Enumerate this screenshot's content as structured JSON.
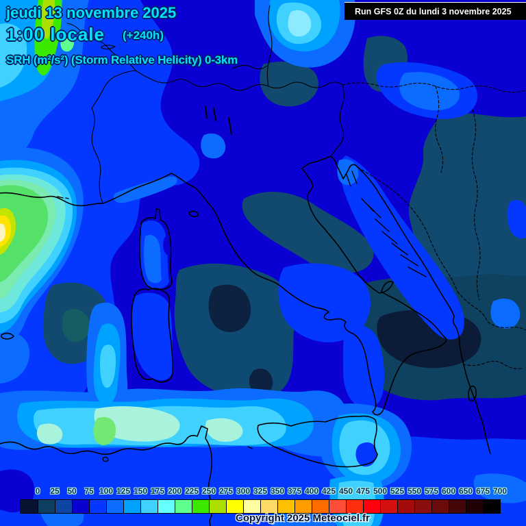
{
  "header": {
    "date_line": "jeudi 13 novembre 2025",
    "time_line": "1:00 locale",
    "forecast_offset": "(+240h)",
    "parameter_line": "SRH (m²/s²) (Storm Relative Helicity) 0-3km",
    "text_color": "#00e2ff"
  },
  "run_box": {
    "label": "Run GFS 0Z du lundi 3 novembre 2025",
    "background": "#000000",
    "text_color": "#ffffff"
  },
  "footer": {
    "copyright": "Copyright 2025 Meteociel.fr"
  },
  "colorbar": {
    "tick_labels": [
      "0",
      "25",
      "50",
      "75",
      "100",
      "125",
      "150",
      "175",
      "200",
      "225",
      "250",
      "275",
      "300",
      "325",
      "350",
      "375",
      "400",
      "425",
      "450",
      "475",
      "500",
      "525",
      "550",
      "575",
      "600",
      "650",
      "675",
      "700"
    ],
    "cell_colors": [
      "#071330",
      "#0e3f61",
      "#0c45a4",
      "#0b00d2",
      "#0437ff",
      "#0b6cff",
      "#00a2ff",
      "#41d1ff",
      "#66ffff",
      "#5fff8e",
      "#3be800",
      "#aadf00",
      "#ffff00",
      "#ffffa2",
      "#ffd966",
      "#ffc000",
      "#ff9d00",
      "#ff6c00",
      "#ff4d38",
      "#ff2e10",
      "#ff000d",
      "#d40f0f",
      "#a30b0b",
      "#8b0e0e",
      "#6b0b0b",
      "#440606",
      "#210202",
      "#000000"
    ]
  },
  "map": {
    "region": "Italy and central Mediterranean",
    "model": "GFS",
    "field": "Storm Relative Helicity 0-3 km"
  }
}
